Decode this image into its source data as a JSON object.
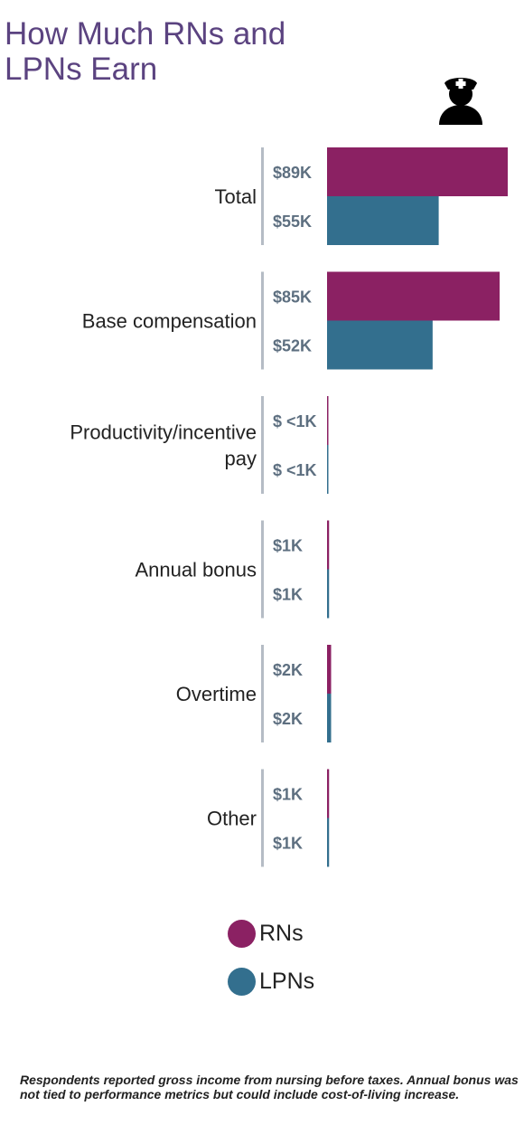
{
  "title_lines": [
    "How Much RNs and",
    "LPNs Earn"
  ],
  "chart_data": {
    "type": "bar",
    "orientation": "horizontal",
    "categories": [
      [
        "Total"
      ],
      [
        "Base compensation"
      ],
      [
        "Productivity/incentive",
        "pay"
      ],
      [
        "Annual bonus"
      ],
      [
        "Overtime"
      ],
      [
        "Other"
      ]
    ],
    "series": [
      {
        "name": "RNs",
        "color": "#8b2163",
        "values": [
          89,
          85,
          0.5,
          1,
          2,
          1
        ],
        "labels": [
          "$89K",
          "$85K",
          "$ <1K",
          "$1K",
          "$2K",
          "$1K"
        ]
      },
      {
        "name": "LPNs",
        "color": "#336f8e",
        "values": [
          55,
          52,
          0.5,
          1,
          2,
          1
        ],
        "labels": [
          "$55K",
          "$52K",
          "$ <1K",
          "$1K",
          "$2K",
          "$1K"
        ]
      }
    ],
    "value_unit": "$K",
    "xlim": [
      0,
      89
    ]
  },
  "legend": [
    {
      "label": "RNs",
      "color": "#8b2163"
    },
    {
      "label": "LPNs",
      "color": "#336f8e"
    }
  ],
  "icon": "nurse-icon",
  "footnote": "Respondents reported gross income from nursing before taxes. Annual bonus was not tied to performance metrics but could include cost-of-living increase."
}
